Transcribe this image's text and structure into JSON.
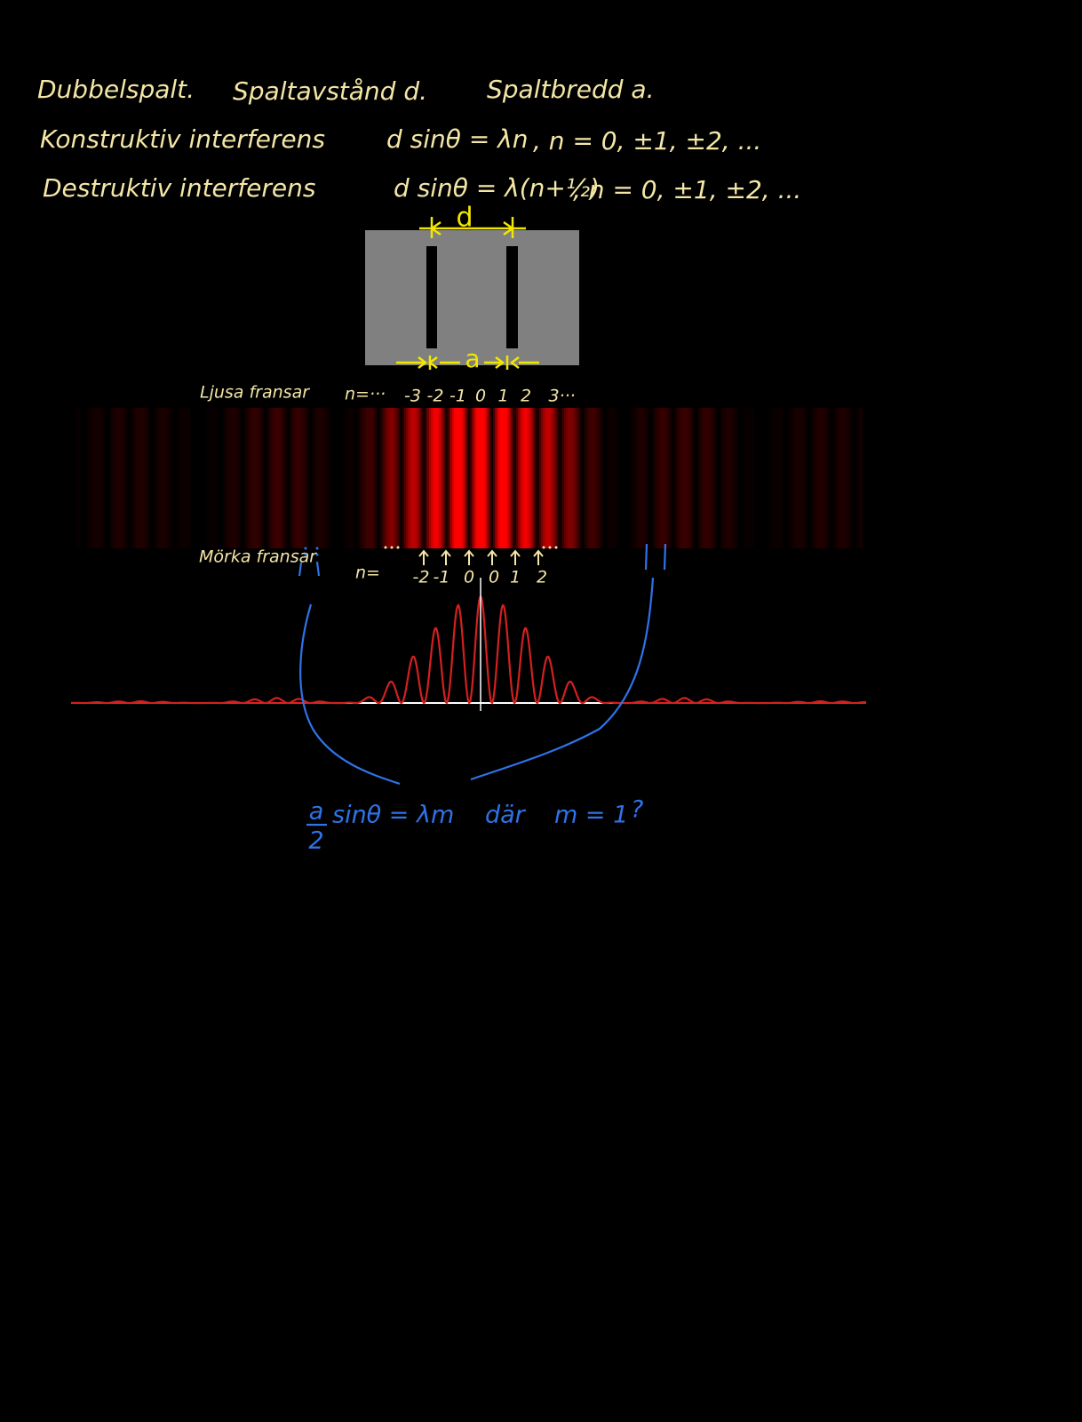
{
  "notes": {
    "heading": [
      "Dubbelspalt.",
      "Spaltavstånd d.",
      "Spaltbredd a."
    ],
    "constructive": {
      "label": "Konstruktiv interferens",
      "formula": "d sinθ = λn",
      "range": ", n = 0, ±1, ±2, ..."
    },
    "destructive": {
      "label": "Destruktiv interferens",
      "formula": "d sinθ = λ(n+½)",
      "range": ", n = 0, ±1, ±2, ..."
    }
  },
  "slit_diagram": {
    "d_label": "d",
    "a_label": "a"
  },
  "bright_fringes": {
    "label": "Ljusa fransar",
    "prefix": "n=···",
    "orders": [
      "-3",
      "-2",
      "-1",
      "0",
      "1",
      "2",
      "3···"
    ]
  },
  "dark_fringes": {
    "label": "Mörka fransar",
    "prefix": "n=",
    "orders": [
      "-2",
      "-1",
      "0",
      "0",
      "1",
      "2"
    ]
  },
  "single_slit_note": {
    "numerator": "a",
    "denominator": "2",
    "formula": "sinθ = λm",
    "word": "där",
    "condition": "m = 1",
    "question": "?"
  }
}
